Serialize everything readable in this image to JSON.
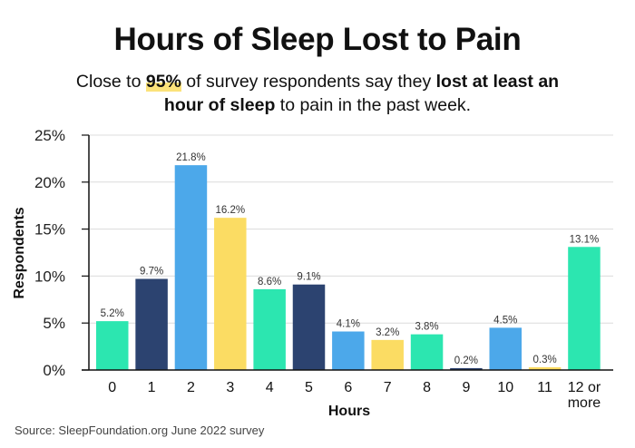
{
  "chart_data": {
    "type": "bar",
    "title": "Hours of Sleep Lost to Pain",
    "subtitle": {
      "parts": [
        {
          "text": "Close to ",
          "style": "normal"
        },
        {
          "text": "95%",
          "style": "bold-highlight"
        },
        {
          "text": " of survey respondents say they ",
          "style": "normal"
        },
        {
          "text": "lost at least an hour of sleep",
          "style": "bold"
        },
        {
          "text": " to pain in the past week.",
          "style": "normal"
        }
      ]
    },
    "xlabel": "Hours",
    "ylabel": "Respondents",
    "categories": [
      "0",
      "1",
      "2",
      "3",
      "4",
      "5",
      "6",
      "7",
      "8",
      "9",
      "10",
      "11",
      "12 or more"
    ],
    "values": [
      5.2,
      9.7,
      21.8,
      16.2,
      8.6,
      9.1,
      4.1,
      3.2,
      3.8,
      0.2,
      4.5,
      0.3,
      13.1
    ],
    "data_labels": [
      "5.2%",
      "9.7%",
      "21.8%",
      "16.2%",
      "8.6%",
      "9.1%",
      "4.1%",
      "3.2%",
      "3.8%",
      "0.2%",
      "4.5%",
      "0.3%",
      "13.1%"
    ],
    "ylim": [
      0,
      25
    ],
    "yticks": [
      0,
      5,
      10,
      15,
      20,
      25
    ],
    "ytick_labels": [
      "0%",
      "5%",
      "10%",
      "15%",
      "20%",
      "25%"
    ],
    "grid": true,
    "bar_colors": [
      "#2ce6b0",
      "#2c4370",
      "#4ca8ea",
      "#fbdc63",
      "#2ce6b0",
      "#2c4370",
      "#4ca8ea",
      "#fbdc63",
      "#2ce6b0",
      "#2c4370",
      "#4ca8ea",
      "#fbdc63",
      "#2ce6b0"
    ],
    "highlight_color": "#fbe27a",
    "source": "Source: SleepFoundation.org June 2022 survey"
  }
}
